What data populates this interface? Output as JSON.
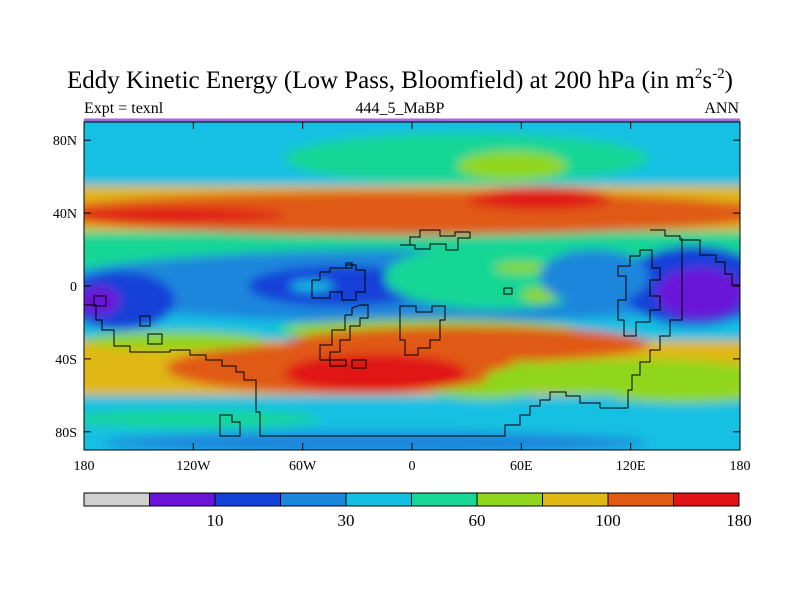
{
  "chart_data": {
    "type": "heatmap",
    "title": "Eddy Kinetic Energy (Low Pass, Bloomfield) at 200 hPa (in m",
    "title_units": {
      "exp1": "2",
      "mid": "s",
      "exp2": "-2",
      "tail": ")"
    },
    "subtitle_left": "Expt = texnl",
    "subtitle_center": "444_5_MaBP",
    "subtitle_right": "ANN",
    "x_range": [
      -180,
      180
    ],
    "y_range": [
      -90,
      90
    ],
    "x_ticks": [
      {
        "value": -180,
        "label": "180"
      },
      {
        "value": -120,
        "label": "120W"
      },
      {
        "value": -60,
        "label": "60W"
      },
      {
        "value": 0,
        "label": "0"
      },
      {
        "value": 60,
        "label": "60E"
      },
      {
        "value": 120,
        "label": "120E"
      },
      {
        "value": 180,
        "label": "180"
      }
    ],
    "y_ticks": [
      {
        "value": 80,
        "label": "80N"
      },
      {
        "value": 40,
        "label": "40N"
      },
      {
        "value": 0,
        "label": "0"
      },
      {
        "value": -40,
        "label": "40S"
      },
      {
        "value": -80,
        "label": "80S"
      }
    ],
    "colorbar": {
      "colors": [
        "#d0d0d0",
        "#6a14d8",
        "#1441d8",
        "#1a86dc",
        "#14c0e2",
        "#17d696",
        "#8fd61c",
        "#e0b814",
        "#e05a14",
        "#e01414"
      ],
      "boundary_labels": [
        {
          "index": 1,
          "label": "10"
        },
        {
          "index": 3,
          "label": "30"
        },
        {
          "index": 5,
          "label": "60"
        },
        {
          "index": 7,
          "label": "100"
        },
        {
          "index": 9,
          "label": "180"
        }
      ]
    },
    "lat_bands": [
      {
        "lat_from": 90,
        "lat_to": 55,
        "level": 4
      },
      {
        "lat_from": 55,
        "lat_to": 30,
        "level": 7
      },
      {
        "lat_from": 30,
        "lat_to": 10,
        "level": 5
      },
      {
        "lat_from": 10,
        "lat_to": -30,
        "level": 4
      },
      {
        "lat_from": -30,
        "lat_to": -60,
        "level": 7
      },
      {
        "lat_from": -60,
        "lat_to": -90,
        "level": 4
      }
    ],
    "features": [
      {
        "lon": -30,
        "lat": 82,
        "rlon": 180,
        "rlat": 12,
        "level": 4
      },
      {
        "lon": 30,
        "lat": 70,
        "rlon": 100,
        "rlat": 14,
        "level": 5
      },
      {
        "lon": 55,
        "lat": 66,
        "rlon": 30,
        "rlat": 8,
        "level": 6
      },
      {
        "lon": 0,
        "lat": 40,
        "rlon": 200,
        "rlat": 12,
        "level": 8
      },
      {
        "lon": -130,
        "lat": 39,
        "rlon": 60,
        "rlat": 4,
        "level": 9
      },
      {
        "lon": 0,
        "lat": 0,
        "rlon": 200,
        "rlat": 20,
        "level": 3
      },
      {
        "lon": -40,
        "lat": 0,
        "rlon": 50,
        "rlat": 11,
        "level": 2
      },
      {
        "lon": -160,
        "lat": -8,
        "rlon": 30,
        "rlat": 16,
        "level": 2
      },
      {
        "lon": -172,
        "lat": -8,
        "rlon": 12,
        "rlat": 8,
        "level": 1
      },
      {
        "lon": 155,
        "lat": 0,
        "rlon": 40,
        "rlat": 22,
        "level": 2
      },
      {
        "lon": 158,
        "lat": -4,
        "rlon": 24,
        "rlat": 14,
        "level": 1
      },
      {
        "lon": -55,
        "lat": 0,
        "rlon": 12,
        "rlat": 3,
        "level": 4
      },
      {
        "lon": -3,
        "lat": 0,
        "rlon": 10,
        "rlat": 4,
        "level": 4
      },
      {
        "lon": 45,
        "lat": 5,
        "rlon": 60,
        "rlat": 18,
        "level": 5
      },
      {
        "lon": 60,
        "lat": 10,
        "rlon": 15,
        "rlat": 3,
        "level": 6
      },
      {
        "lon": 70,
        "lat": -5,
        "rlon": 10,
        "rlat": 4,
        "level": 6
      },
      {
        "lon": 100,
        "lat": 5,
        "rlon": 30,
        "rlat": 15,
        "level": 3
      },
      {
        "lon": 70,
        "lat": 48,
        "rlon": 40,
        "rlat": 6,
        "level": 9
      },
      {
        "lon": -45,
        "lat": -24,
        "rlon": 30,
        "rlat": 4,
        "level": 5
      },
      {
        "lon": 10,
        "lat": -24,
        "rlon": 80,
        "rlat": 6,
        "level": 6
      },
      {
        "lon": 40,
        "lat": -50,
        "rlon": 40,
        "rlat": 12,
        "level": 6
      },
      {
        "lon": -40,
        "lat": -45,
        "rlon": 95,
        "rlat": 14,
        "level": 8
      },
      {
        "lon": 30,
        "lat": -32,
        "rlon": 100,
        "rlat": 10,
        "level": 8
      },
      {
        "lon": -20,
        "lat": -48,
        "rlon": 50,
        "rlat": 11,
        "level": 9
      },
      {
        "lon": -130,
        "lat": -30,
        "rlon": 50,
        "rlat": 5,
        "level": 6
      },
      {
        "lon": 120,
        "lat": -50,
        "rlon": 80,
        "rlat": 10,
        "level": 6
      },
      {
        "lon": -120,
        "lat": -73,
        "rlon": 70,
        "rlat": 5,
        "level": 5
      },
      {
        "lon": 150,
        "lat": -60,
        "rlon": 40,
        "rlat": 4,
        "level": 6
      },
      {
        "lon": -20,
        "lat": -86,
        "rlon": 150,
        "rlat": 6,
        "level": 3
      }
    ]
  }
}
